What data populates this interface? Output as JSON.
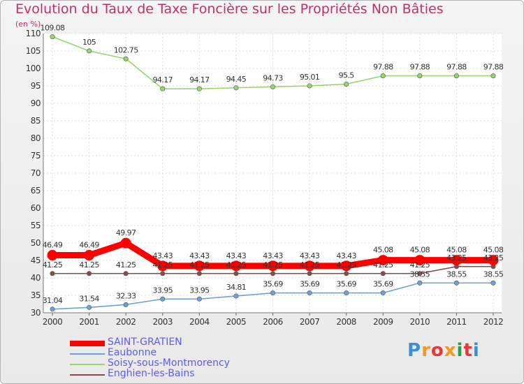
{
  "chart_data": {
    "type": "line",
    "title": "Evolution du Taux de Taxe Foncière sur les Propriétés Non Bâties",
    "unit_label": "(en %)",
    "x": [
      "2000",
      "2001",
      "2002",
      "2003",
      "2004",
      "2005",
      "2006",
      "2007",
      "2008",
      "2009",
      "2010",
      "2011",
      "2012"
    ],
    "ylim": [
      30,
      110
    ],
    "yticks": [
      30,
      35,
      40,
      45,
      50,
      55,
      60,
      65,
      70,
      75,
      80,
      85,
      90,
      95,
      100,
      105,
      110
    ],
    "grid": true,
    "legend_position": "bottom-left",
    "series": [
      {
        "name": "SAINT-GRATIEN",
        "color": "#ff0000",
        "values": [
          46.49,
          46.49,
          49.97,
          43.43,
          43.43,
          43.43,
          43.43,
          43.43,
          43.43,
          45.08,
          45.08,
          45.08,
          45.08
        ],
        "labels": [
          "46.49",
          "46.49",
          "49.97",
          "43.43",
          "43.43",
          "43.43",
          "43.43",
          "43.43",
          "43.43",
          "45.08",
          "45.08",
          "45.08",
          "45.08"
        ]
      },
      {
        "name": "Eaubonne",
        "color": "#6ea2d4",
        "values": [
          31.04,
          31.54,
          32.33,
          33.95,
          33.95,
          34.81,
          35.69,
          35.69,
          35.69,
          35.69,
          38.55,
          38.55,
          38.55
        ],
        "labels": [
          "31.04",
          "31.54",
          "32.33",
          "33.95",
          "33.95",
          "34.81",
          "35.69",
          "35.69",
          "35.69",
          "35.69",
          "38.55",
          "38.55",
          "38.55"
        ]
      },
      {
        "name": "Soisy-sous-Montmorency",
        "color": "#9ad46e",
        "values": [
          109.08,
          105,
          102.75,
          94.17,
          94.17,
          94.45,
          94.73,
          95.01,
          95.5,
          97.88,
          97.88,
          97.88,
          97.88
        ],
        "labels": [
          "109.08",
          "105",
          "102.75",
          "94.17",
          "94.17",
          "94.45",
          "94.73",
          "95.01",
          "95.5",
          "97.88",
          "97.88",
          "97.88",
          "97.88"
        ]
      },
      {
        "name": "Enghien-les-Bains",
        "color": "#8b4a4a",
        "values": [
          41.25,
          41.25,
          41.25,
          41.25,
          41.25,
          41.25,
          41.25,
          41.25,
          41.25,
          41.25,
          41.25,
          43.25,
          43.25
        ],
        "labels": [
          "41.25",
          "41.25",
          "41.25",
          "41.25",
          "41.25",
          "41.25",
          "41.25",
          "41.25",
          "41.25",
          "41.25",
          "41.25",
          "43.25",
          "43.25"
        ]
      }
    ]
  },
  "logo": {
    "letters": [
      "P",
      "r",
      "o",
      "x",
      "i",
      "t",
      "i"
    ],
    "colors": [
      "#3a8fd8",
      "#f39a1e",
      "#e23b3b",
      "#f39a1e",
      "#2a9d4a",
      "#e23b3b",
      "#3a8fd8"
    ]
  }
}
